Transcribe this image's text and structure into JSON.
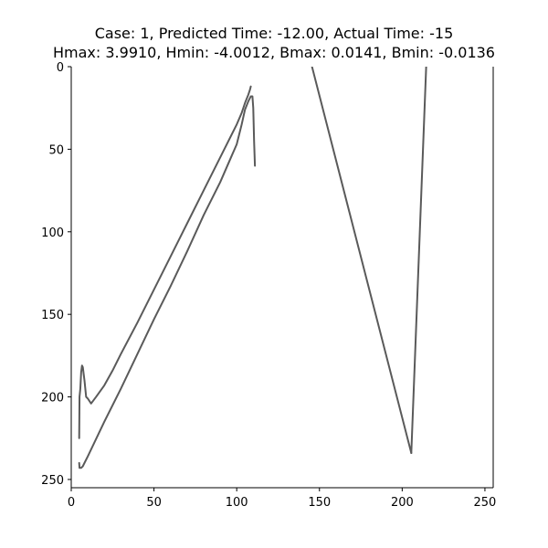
{
  "chart_data": {
    "type": "line",
    "title_lines": [
      "Case: 1, Predicted Time: -12.00, Actual Time: -15",
      "Hmax: 3.9910, Hmin: -4.0012, Bmax: 0.0141, Bmin: -0.0136"
    ],
    "xlabel": "",
    "ylabel": "",
    "xlim": [
      0,
      255
    ],
    "ylim": [
      255,
      0
    ],
    "y_inverted": true,
    "grid": false,
    "x_ticks": [
      0,
      50,
      100,
      150,
      200,
      250
    ],
    "y_ticks": [
      0,
      50,
      100,
      150,
      200,
      250
    ],
    "line_color": "#5a5a5a",
    "series": [
      {
        "x": [
          4.8,
          5,
          5.5,
          6,
          6.5,
          7,
          8,
          9,
          10,
          12,
          15,
          20,
          25,
          30,
          40,
          50,
          60,
          70,
          80,
          90,
          100,
          103,
          105,
          107,
          108,
          108.5
        ],
        "y": [
          225,
          200,
          195,
          185,
          181,
          182,
          190,
          200,
          201,
          204,
          200,
          193,
          184,
          174,
          155,
          135,
          115,
          95,
          75,
          55,
          35,
          28,
          22,
          17,
          14,
          12
        ]
      },
      {
        "x": [
          4.8,
          5,
          6,
          7,
          8,
          10,
          20,
          30,
          40,
          50,
          60,
          70,
          80,
          90,
          100,
          103,
          105,
          107,
          108.5,
          109.5,
          110,
          110.5,
          111
        ],
        "y": [
          240,
          243,
          243,
          242,
          240,
          236,
          215,
          195,
          174,
          153,
          133,
          112,
          90,
          70,
          47,
          35,
          26,
          21,
          18,
          18,
          25,
          45,
          60
        ]
      },
      {
        "x": [
          145.5,
          205.5
        ],
        "y": [
          0,
          234
        ]
      },
      {
        "x": [
          205.5,
          214.5
        ],
        "y": [
          234,
          0
        ]
      }
    ]
  }
}
